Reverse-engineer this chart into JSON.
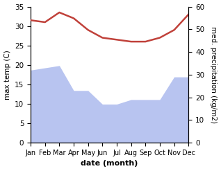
{
  "months": [
    "Jan",
    "Feb",
    "Mar",
    "Apr",
    "May",
    "Jun",
    "Jul",
    "Aug",
    "Sep",
    "Oct",
    "Nov",
    "Dec"
  ],
  "temperature": [
    31.5,
    31.0,
    33.5,
    32.0,
    29.0,
    27.0,
    26.5,
    26.0,
    26.0,
    27.0,
    29.0,
    33.0
  ],
  "precipitation": [
    32,
    33,
    34,
    23,
    23,
    17,
    17,
    19,
    19,
    19,
    29,
    29
  ],
  "temp_color": "#c0413a",
  "precip_color": "#b8c4f0",
  "background_color": "#ffffff",
  "ylabel_left": "max temp (C)",
  "ylabel_right": "med. precipitation (kg/m2)",
  "xlabel": "date (month)",
  "ylim_left": [
    0,
    35
  ],
  "ylim_right": [
    0,
    60
  ],
  "label_fontsize": 8,
  "tick_fontsize": 7.5
}
